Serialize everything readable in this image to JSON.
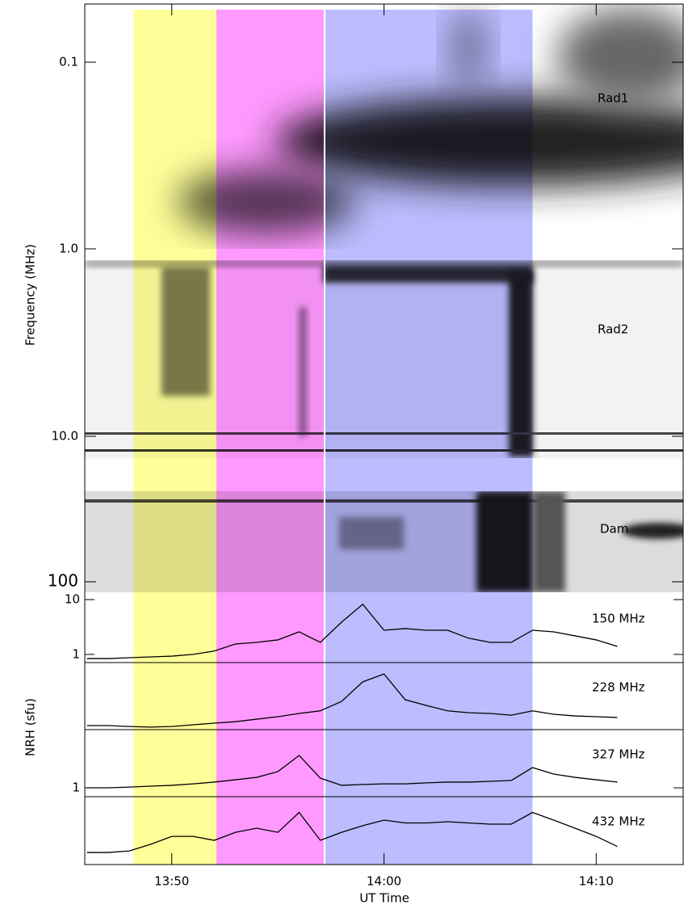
{
  "chart_data": [
    {
      "type": "spectrogram",
      "y_label": "Frequency (MHz)",
      "yscale": "log",
      "ylim": [
        0.049,
        118
      ],
      "yticks": [
        0.1,
        {
          "value": 1,
          "label": "1.0"
        },
        {
          "value": 10,
          "label": "10.0"
        },
        100
      ],
      "bands": [
        "Rad1",
        "Rad2",
        "Dam"
      ]
    },
    {
      "type": "line",
      "y_label": "NRH (sfu)",
      "x_label": "UT Time",
      "yscale": "log",
      "xlim": [
        825.9,
        854.1
      ],
      "xticks": [
        {
          "value": 830,
          "label": "13:50"
        },
        {
          "value": 840,
          "label": "14:00"
        },
        {
          "value": 850,
          "label": "14:10"
        }
      ],
      "intervals": [
        {
          "start": 828.2,
          "end": 832.1,
          "color": "#ffff99"
        },
        {
          "start": 832.1,
          "end": 837.2,
          "color": "#ff99ff"
        },
        {
          "start": 837.2,
          "end": 847.0,
          "color": "#bcbcff"
        }
      ],
      "x": [
        826,
        827,
        828,
        829,
        830,
        831,
        832,
        833,
        834,
        835,
        836,
        837,
        838,
        839,
        840,
        841,
        842,
        843,
        844,
        845,
        846,
        847,
        848,
        849,
        850,
        851
      ],
      "series": [
        {
          "name": "150 MHz",
          "color": "#000000",
          "ylim": [
            0.71,
            12.7
          ],
          "yticks": [
            1,
            10
          ],
          "values": [
            0.84,
            0.84,
            0.87,
            0.9,
            0.93,
            1.0,
            1.15,
            1.55,
            1.66,
            1.84,
            2.58,
            1.66,
            3.87,
            8.2,
            2.76,
            2.96,
            2.76,
            2.76,
            1.97,
            1.66,
            1.66,
            2.76,
            2.58,
            2.18,
            1.84,
            1.4
          ]
        },
        {
          "name": "228 MHz",
          "color": "#000000",
          "ylim": [
            0.7,
            12
          ],
          "values": [
            0.83,
            0.83,
            0.8,
            0.78,
            0.8,
            0.86,
            0.92,
            0.98,
            1.09,
            1.21,
            1.39,
            1.55,
            2.31,
            5.3,
            7.4,
            2.48,
            1.95,
            1.55,
            1.43,
            1.39,
            1.29,
            1.55,
            1.34,
            1.25,
            1.21,
            1.17
          ]
        },
        {
          "name": "327 MHz",
          "color": "#000000",
          "ylim": [
            0.69,
            11.4
          ],
          "yticks": [
            1
          ],
          "values": [
            1.0,
            1.0,
            1.03,
            1.07,
            1.11,
            1.18,
            1.27,
            1.4,
            1.55,
            1.97,
            3.87,
            1.5,
            1.11,
            1.15,
            1.18,
            1.18,
            1.23,
            1.27,
            1.27,
            1.31,
            1.36,
            2.33,
            1.78,
            1.55,
            1.4,
            1.27
          ]
        },
        {
          "name": "432 MHz",
          "color": "#000000",
          "ylim": [
            0.7,
            12
          ],
          "values": [
            1.16,
            1.16,
            1.24,
            1.63,
            2.28,
            2.28,
            1.93,
            2.7,
            3.21,
            2.7,
            6.2,
            1.93,
            2.7,
            3.56,
            4.5,
            4.0,
            4.0,
            4.2,
            4.0,
            3.8,
            3.8,
            6.2,
            4.5,
            3.21,
            2.28,
            1.49
          ]
        }
      ]
    }
  ]
}
